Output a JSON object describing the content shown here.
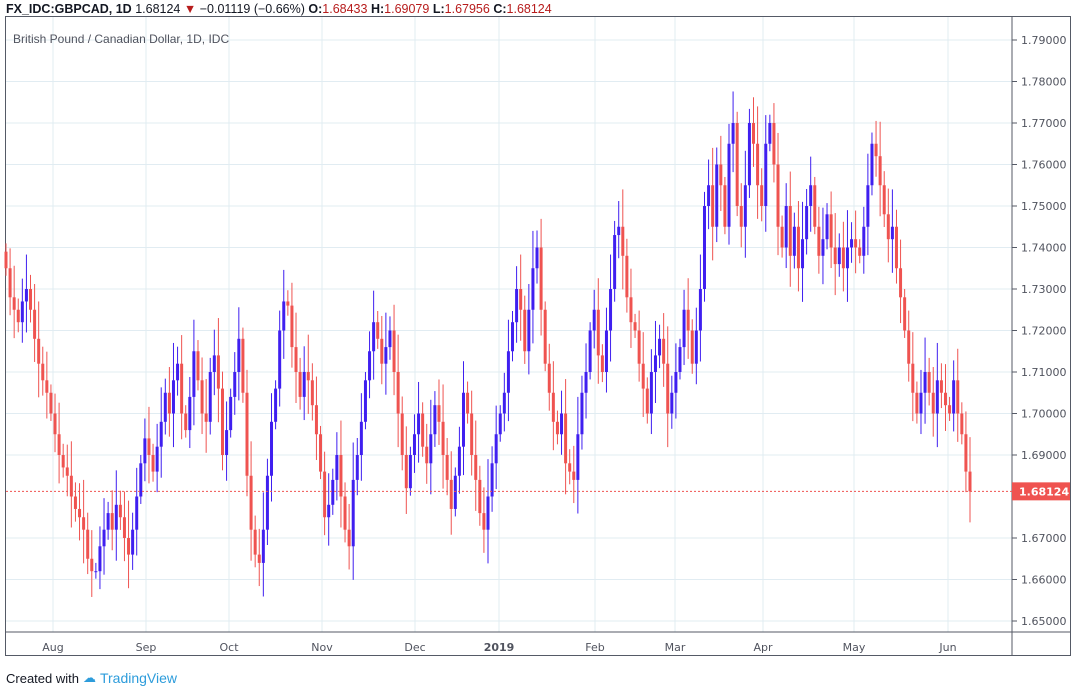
{
  "header": {
    "symbol": "FX_IDC:GBPCAD, 1D",
    "last": "1.68124",
    "change": "−0.01119 (−0.66%)",
    "o_label": "O:",
    "o": "1.68433",
    "h_label": "H:",
    "h": "1.69079",
    "l_label": "L:",
    "l": "1.67956",
    "c_label": "C:",
    "c": "1.68124"
  },
  "footer": {
    "created_with": "Created with",
    "brand": "TradingView"
  },
  "colors": {
    "up": "#3f1ff0",
    "down": "#ef5350",
    "grid": "#e1ecf2",
    "axis": "#555a66"
  },
  "chart_data": {
    "type": "candlestick",
    "title": "British Pound / Canadian Dollar, 1D, IDC",
    "ylim": [
      1.647,
      1.7965
    ],
    "y_ticks": [
      "1.79000",
      "1.78000",
      "1.77000",
      "1.76000",
      "1.75000",
      "1.74000",
      "1.73000",
      "1.72000",
      "1.71000",
      "1.70000",
      "1.69000",
      "1.67000",
      "1.66000",
      "1.65000"
    ],
    "x_ticks": [
      "Aug",
      "Sep",
      "Oct",
      "Nov",
      "Dec",
      "2019",
      "Feb",
      "Mar",
      "Apr",
      "May",
      "Jun"
    ],
    "last_price": "1.68124",
    "closes": [
      1.735,
      1.728,
      1.725,
      1.722,
      1.727,
      1.73,
      1.725,
      1.718,
      1.712,
      1.708,
      1.705,
      1.7,
      1.695,
      1.69,
      1.687,
      1.685,
      1.68,
      1.677,
      1.675,
      1.672,
      1.665,
      1.662,
      1.662,
      1.668,
      1.672,
      1.676,
      1.672,
      1.678,
      1.675,
      1.67,
      1.666,
      1.672,
      1.68,
      1.688,
      1.694,
      1.69,
      1.686,
      1.692,
      1.698,
      1.705,
      1.7,
      1.708,
      1.712,
      1.7,
      1.696,
      1.704,
      1.715,
      1.708,
      1.7,
      1.698,
      1.71,
      1.714,
      1.706,
      1.69,
      1.696,
      1.704,
      1.71,
      1.718,
      1.705,
      1.685,
      1.672,
      1.666,
      1.664,
      1.672,
      1.685,
      1.698,
      1.706,
      1.72,
      1.727,
      1.726,
      1.716,
      1.71,
      1.704,
      1.71,
      1.708,
      1.702,
      1.695,
      1.686,
      1.675,
      1.678,
      1.684,
      1.69,
      1.68,
      1.672,
      1.668,
      1.684,
      1.69,
      1.698,
      1.708,
      1.715,
      1.722,
      1.718,
      1.712,
      1.716,
      1.72,
      1.71,
      1.7,
      1.69,
      1.682,
      1.69,
      1.695,
      1.7,
      1.692,
      1.688,
      1.695,
      1.702,
      1.698,
      1.69,
      1.684,
      1.677,
      1.685,
      1.692,
      1.705,
      1.7,
      1.69,
      1.684,
      1.676,
      1.672,
      1.68,
      1.688,
      1.695,
      1.7,
      1.705,
      1.715,
      1.722,
      1.73,
      1.725,
      1.715,
      1.725,
      1.735,
      1.74,
      1.725,
      1.712,
      1.705,
      1.698,
      1.695,
      1.7,
      1.688,
      1.686,
      1.684,
      1.695,
      1.705,
      1.71,
      1.72,
      1.725,
      1.714,
      1.71,
      1.72,
      1.73,
      1.743,
      1.745,
      1.738,
      1.728,
      1.722,
      1.72,
      1.712,
      1.706,
      1.7,
      1.71,
      1.714,
      1.718,
      1.712,
      1.7,
      1.705,
      1.71,
      1.716,
      1.725,
      1.72,
      1.712,
      1.72,
      1.73,
      1.75,
      1.755,
      1.745,
      1.76,
      1.755,
      1.745,
      1.765,
      1.77,
      1.75,
      1.745,
      1.755,
      1.77,
      1.765,
      1.755,
      1.75,
      1.765,
      1.77,
      1.76,
      1.745,
      1.74,
      1.75,
      1.738,
      1.745,
      1.735,
      1.742,
      1.75,
      1.755,
      1.745,
      1.738,
      1.742,
      1.748,
      1.74,
      1.736,
      1.74,
      1.735,
      1.74,
      1.742,
      1.74,
      1.738,
      1.745,
      1.755,
      1.765,
      1.762,
      1.755,
      1.748,
      1.742,
      1.745,
      1.735,
      1.728,
      1.72,
      1.712,
      1.705,
      1.7,
      1.705,
      1.71,
      1.705,
      1.7,
      1.708,
      1.705,
      1.702,
      1.7,
      1.708,
      1.7,
      1.695,
      1.686,
      1.68124
    ]
  }
}
